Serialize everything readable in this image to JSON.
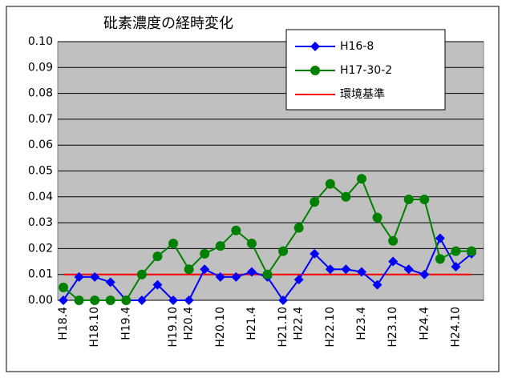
{
  "chart_data": {
    "type": "line",
    "title": "砒素濃度の経時変化",
    "categories": [
      "H18.4",
      null,
      "H18.10",
      null,
      "H19.4",
      null,
      null,
      "H19.10",
      "H20.4",
      null,
      "H20.10",
      null,
      "H21.4",
      null,
      "H21.10",
      "H22.4",
      null,
      "H22.10",
      null,
      "H23.4",
      null,
      "H23.10",
      null,
      "H24.4",
      null,
      "H24.10",
      null
    ],
    "series": [
      {
        "name": "H16-8",
        "color": "#0000ff",
        "marker": "diamond",
        "values": [
          0,
          0.009,
          0.009,
          0.007,
          0,
          0,
          0.006,
          0,
          0,
          0.012,
          0.009,
          0.009,
          0.011,
          0.009,
          0,
          0.008,
          0.018,
          0.012,
          0.012,
          0.011,
          0.006,
          0.015,
          0.012,
          0.01,
          0.024,
          0.013,
          0.018
        ]
      },
      {
        "name": "H17-30-2",
        "color": "#008000",
        "marker": "circle",
        "values": [
          0.005,
          0,
          0,
          0,
          0,
          0.01,
          0.017,
          0.022,
          0.012,
          0.018,
          0.021,
          0.027,
          0.022,
          0.01,
          0.019,
          0.028,
          0.038,
          0.045,
          0.04,
          0.047,
          0.032,
          0.023,
          0.039,
          0.039,
          0.016,
          0.019,
          0.019
        ]
      }
    ],
    "reference_line": {
      "name": "環境基準",
      "value": 0.01,
      "color": "#ff0000"
    },
    "ylim": [
      0,
      0.1
    ],
    "yticks": [
      {
        "value": 0,
        "label": "0.00"
      },
      {
        "value": 0.01,
        "label": "0.01"
      },
      {
        "value": 0.02,
        "label": "0.02"
      },
      {
        "value": 0.03,
        "label": "0.03"
      },
      {
        "value": 0.04,
        "label": "0.04"
      },
      {
        "value": 0.05,
        "label": "0.05"
      },
      {
        "value": 0.06,
        "label": "0.06"
      },
      {
        "value": 0.07,
        "label": "0.07"
      },
      {
        "value": 0.08,
        "label": "0.08"
      },
      {
        "value": 0.09,
        "label": "0.09"
      },
      {
        "value": 0.1,
        "label": "0.10"
      }
    ],
    "grid": true
  }
}
